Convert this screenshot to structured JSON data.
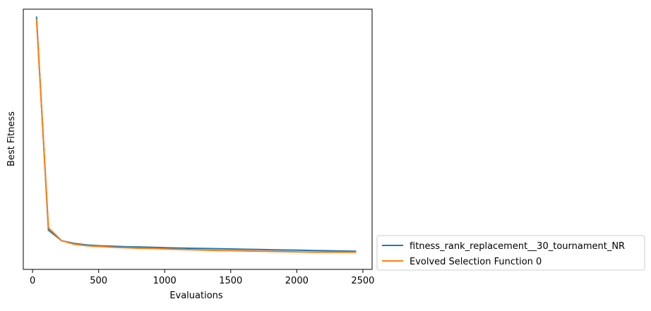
{
  "chart_data": {
    "type": "line",
    "title": "",
    "xlabel": "Evaluations",
    "ylabel": "Best Fitness",
    "xlim": [
      -70,
      2570
    ],
    "ylim": [
      -0.03,
      1.03
    ],
    "xticks": [
      0,
      500,
      1000,
      1500,
      2000,
      2500
    ],
    "yticks_labeled": false,
    "grid": false,
    "legend_position": "outside-lower-right",
    "series": [
      {
        "name": "fitness_rank_replacement__30_tournament_NR",
        "color": "#1f77b4",
        "x": [
          30,
          120,
          220,
          320,
          420,
          520,
          620,
          720,
          820,
          920,
          1020,
          1120,
          1220,
          1320,
          1420,
          1520,
          1620,
          1720,
          1820,
          1920,
          2020,
          2120,
          2220,
          2320,
          2450
        ],
        "y": [
          1.0,
          0.13,
          0.087,
          0.075,
          0.069,
          0.066,
          0.064,
          0.062,
          0.061,
          0.06,
          0.058,
          0.057,
          0.056,
          0.055,
          0.054,
          0.053,
          0.052,
          0.051,
          0.05,
          0.049,
          0.048,
          0.047,
          0.046,
          0.045,
          0.044
        ]
      },
      {
        "name": "Evolved Selection Function 0",
        "color": "#ff7f0e",
        "x": [
          30,
          120,
          220,
          320,
          420,
          520,
          620,
          720,
          820,
          920,
          1020,
          1120,
          1220,
          1320,
          1420,
          1520,
          1620,
          1720,
          1820,
          1920,
          2020,
          2120,
          2220,
          2320,
          2450
        ],
        "y": [
          0.99,
          0.14,
          0.087,
          0.072,
          0.066,
          0.063,
          0.06,
          0.058,
          0.056,
          0.055,
          0.053,
          0.051,
          0.05,
          0.048,
          0.047,
          0.046,
          0.045,
          0.044,
          0.043,
          0.042,
          0.041,
          0.04,
          0.04,
          0.04,
          0.04
        ]
      }
    ]
  }
}
